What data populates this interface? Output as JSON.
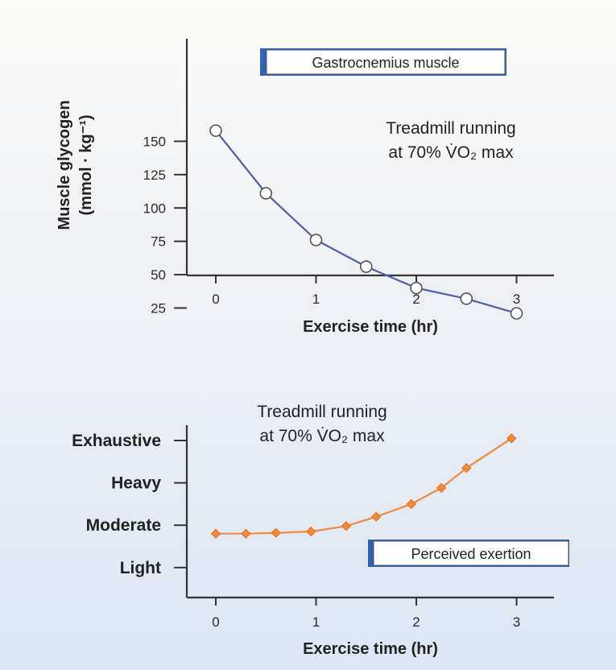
{
  "chart_data": [
    {
      "type": "line",
      "title_box": "Gastrocnemius muscle",
      "annotation_line1": "Treadmill running",
      "annotation_line2": "at 70% V̇O₂ max",
      "ylabel_line1": "Muscle glycogen",
      "ylabel_line2": "(mmol · kg⁻¹)",
      "xlabel": "Exercise time (hr)",
      "x_ticks": [
        "0",
        "1",
        "2",
        "3"
      ],
      "y_ticks": [
        "25",
        "50",
        "75",
        "100",
        "125",
        "150"
      ],
      "xlim": [
        0,
        3
      ],
      "ylim": [
        0,
        160
      ],
      "series": [
        {
          "x": [
            0,
            0.5,
            1,
            1.5,
            2,
            2.5,
            3
          ],
          "y": [
            158,
            111,
            76,
            56,
            40,
            32,
            21
          ]
        }
      ],
      "line_color": "#4c5fa8",
      "marker": "open-circle"
    },
    {
      "type": "line",
      "title_box": "Perceived exertion",
      "annotation_line1": "Treadmill running",
      "annotation_line2": "at 70% V̇O₂ max",
      "xlabel": "Exercise time (hr)",
      "x_ticks": [
        "0",
        "1",
        "2",
        "3"
      ],
      "y_categories": [
        "Light",
        "Moderate",
        "Heavy",
        "Exhaustive"
      ],
      "xlim": [
        0,
        3
      ],
      "series": [
        {
          "x": [
            0,
            0.3,
            0.6,
            0.95,
            1.3,
            1.6,
            1.95,
            2.25,
            2.5,
            2.95
          ],
          "y": [
            1.8,
            1.8,
            1.82,
            1.85,
            1.98,
            2.2,
            2.5,
            2.88,
            3.35,
            4.05
          ]
        }
      ],
      "line_color": "#f08a3c",
      "marker": "filled-diamond"
    }
  ]
}
